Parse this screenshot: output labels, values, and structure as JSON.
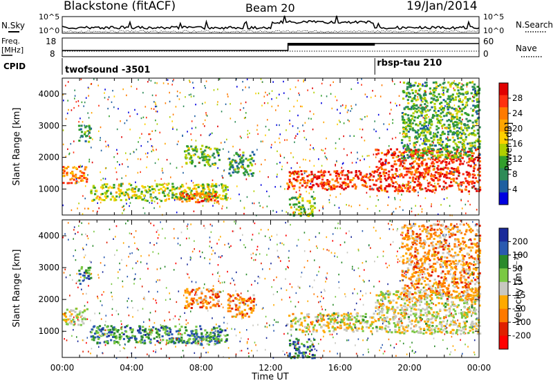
{
  "header": {
    "title": "Blackstone (fitACF)",
    "beam": "Beam 20",
    "date": "19/Jan/2014"
  },
  "top_panels": {
    "nsky_label": "N.Sky",
    "nsearch_label": "N.Search",
    "sky_ticks": [
      "10^5",
      "10^0"
    ],
    "freq_label_1": "Freq.",
    "freq_label_2": "[MHz]",
    "freq_ticks": [
      "18",
      "8"
    ],
    "nave_label": "Nave",
    "nave_ticks": [
      "60",
      "0"
    ],
    "cpid_label": "CPID",
    "cpid_1": "twofsound -3501",
    "cpid_2": "rbsp-tau 210",
    "cpid_switch_hour": 18.0,
    "freq_step_hour": 13.0
  },
  "axes": {
    "ylabel": "Slant Range [km]",
    "xlabel": "Time UT",
    "x_ticks": [
      "00:00",
      "04:00",
      "08:00",
      "12:00",
      "16:00",
      "20:00",
      "00:00"
    ],
    "y_ticks": [
      "1000",
      "2000",
      "3000",
      "4000"
    ]
  },
  "colorbars": {
    "power": {
      "label": "Power [dB]",
      "ticks": [
        "28",
        "24",
        "20",
        "16",
        "12",
        "8",
        "4"
      ],
      "colors": [
        "#e00000",
        "#ff3010",
        "#ff7a00",
        "#ffa500",
        "#ffd000",
        "#b0d000",
        "#33a02c",
        "#2e8b57",
        "#1e5fa0",
        "#0000e0"
      ]
    },
    "velocity": {
      "label": "Velocity [m s⁻¹]",
      "ticks": [
        "200",
        "100",
        "50",
        "15",
        "-15",
        "-50",
        "-100",
        "-200"
      ],
      "colors": [
        "#1a2a9a",
        "#2a5ab0",
        "#2a8a2a",
        "#7ac843",
        "#c8c8c0",
        "#ffaa00",
        "#ff7a00",
        "#e02000",
        "#ff0000"
      ]
    }
  },
  "chart_data": [
    {
      "type": "heatmap",
      "name": "power",
      "xlim": [
        0,
        24
      ],
      "ylim": [
        180,
        4500
      ],
      "regions": [
        {
          "t0": 0.0,
          "t1": 1.4,
          "r0": 1200,
          "r1": 1750,
          "level": 0.75
        },
        {
          "t0": 0.9,
          "t1": 1.6,
          "r0": 2500,
          "r1": 3050,
          "level": 0.3
        },
        {
          "t0": 1.6,
          "t1": 9.5,
          "r0": 650,
          "r1": 1200,
          "level": 0.45
        },
        {
          "t0": 6.5,
          "t1": 9.0,
          "r0": 600,
          "r1": 900,
          "level": 0.8
        },
        {
          "t0": 7.0,
          "t1": 9.0,
          "r0": 1750,
          "r1": 2400,
          "level": 0.35
        },
        {
          "t0": 9.5,
          "t1": 11.0,
          "r0": 1450,
          "r1": 2200,
          "level": 0.3
        },
        {
          "t0": 12.9,
          "t1": 18.0,
          "r0": 1000,
          "r1": 1600,
          "level": 0.85
        },
        {
          "t0": 13.0,
          "t1": 14.5,
          "r0": 180,
          "r1": 800,
          "level": 0.4
        },
        {
          "t0": 18.0,
          "t1": 24.0,
          "r0": 950,
          "r1": 2300,
          "level": 0.85
        },
        {
          "t0": 19.5,
          "t1": 24.0,
          "r0": 2000,
          "r1": 4400,
          "level": 0.35
        }
      ]
    },
    {
      "type": "heatmap",
      "name": "velocity",
      "xlim": [
        0,
        24
      ],
      "ylim": [
        180,
        4500
      ],
      "regions": [
        {
          "t0": 0.0,
          "t1": 1.4,
          "r0": 1200,
          "r1": 1750,
          "level": 0.5
        },
        {
          "t0": 0.9,
          "t1": 1.6,
          "r0": 2500,
          "r1": 3050,
          "level": 0.75
        },
        {
          "t0": 1.6,
          "t1": 9.5,
          "r0": 650,
          "r1": 1200,
          "level": 0.75
        },
        {
          "t0": 6.5,
          "t1": 9.0,
          "r0": 600,
          "r1": 900,
          "level": 0.7
        },
        {
          "t0": 7.0,
          "t1": 9.0,
          "r0": 1750,
          "r1": 2400,
          "level": 0.3
        },
        {
          "t0": 9.5,
          "t1": 11.0,
          "r0": 1450,
          "r1": 2200,
          "level": 0.3
        },
        {
          "t0": 12.9,
          "t1": 18.0,
          "r0": 1000,
          "r1": 1600,
          "level": 0.5
        },
        {
          "t0": 13.0,
          "t1": 14.5,
          "r0": 180,
          "r1": 800,
          "level": 0.8
        },
        {
          "t0": 18.0,
          "t1": 24.0,
          "r0": 950,
          "r1": 2300,
          "level": 0.5
        },
        {
          "t0": 19.5,
          "t1": 24.0,
          "r0": 2000,
          "r1": 4400,
          "level": 0.35
        }
      ]
    }
  ]
}
